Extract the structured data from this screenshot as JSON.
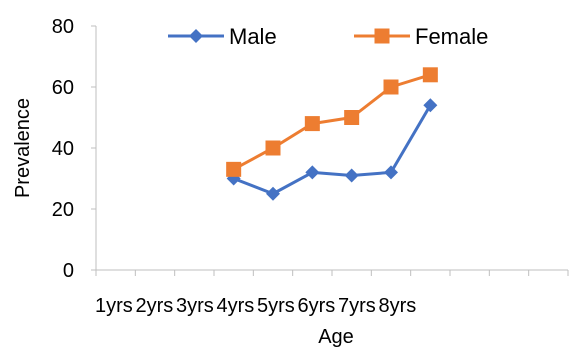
{
  "chart_data": {
    "type": "line",
    "title": "",
    "xlabel": "Age",
    "ylabel": "Prevalence",
    "categories": [
      "1yrs",
      "2yrs",
      "3yrs",
      "4yrs",
      "5yrs",
      "6yrs",
      "7yrs",
      "8yrs"
    ],
    "ylim": [
      0,
      80
    ],
    "yticks": [
      0,
      20,
      40,
      60,
      80
    ],
    "grid": false,
    "legend": {
      "position": "top"
    },
    "series": [
      {
        "name": "Male",
        "color": "#4472C4",
        "marker": "diamond",
        "x": [
          3.5,
          4.5,
          5.5,
          6.5,
          7.5,
          8.5
        ],
        "values": [
          30,
          25,
          32,
          31,
          32,
          54
        ]
      },
      {
        "name": "Female",
        "color": "#ED7D31",
        "marker": "square",
        "x": [
          3.5,
          4.5,
          5.5,
          6.5,
          7.5,
          8.5
        ],
        "values": [
          33,
          40,
          48,
          50,
          60,
          64
        ]
      }
    ]
  }
}
